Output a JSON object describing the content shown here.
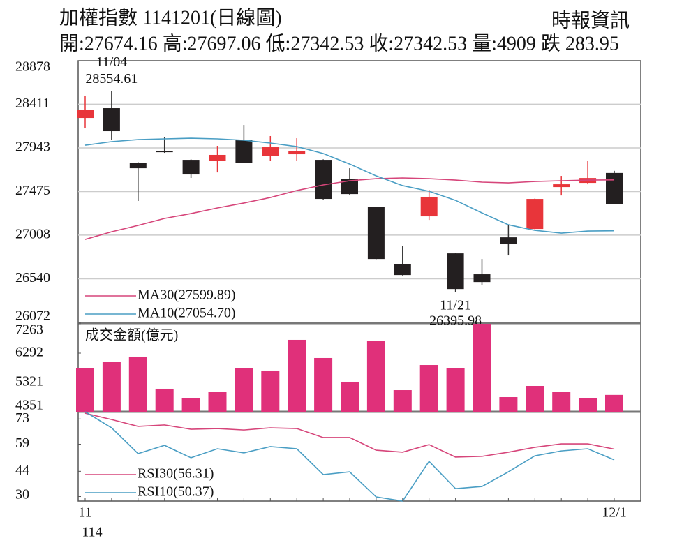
{
  "chart_data": [
    {
      "type": "candlestick",
      "title": "加權指數 1141201(日線圖)",
      "subtitle": "開:27674.16 高:27697.06 低:27342.53 收:27342.53 量:4909 跌 283.95",
      "source": "時報資訊",
      "open": [
        28264,
        28369,
        27785,
        27912,
        27815,
        27808,
        28032,
        27860,
        27875,
        27815,
        27606,
        27314,
        26700,
        27209,
        26812,
        26588,
        26984,
        27074,
        27523,
        27568,
        27674.16
      ],
      "high": [
        28504,
        28554.61,
        27790,
        28062,
        27820,
        27965,
        28189,
        28070,
        28047,
        27820,
        27725,
        27314,
        26894,
        27493,
        26812,
        26752,
        27112,
        27400,
        27643,
        27808,
        27697.06
      ],
      "low": [
        28152,
        28032,
        27374,
        27890,
        27621,
        27680,
        27780,
        27808,
        27808,
        27390,
        27440,
        26750,
        26575,
        27171,
        26395.98,
        26475,
        26790,
        27070,
        27433,
        27553,
        27342.53
      ],
      "close": [
        28347,
        28122,
        27725,
        27897,
        27658,
        27868,
        27785,
        27950,
        27912,
        27396,
        27448,
        26752,
        26580,
        27419,
        26430,
        26505,
        26910,
        27396,
        27553,
        27620,
        27342.53
      ],
      "up_color": "#e8353a",
      "down_color": "#231f20",
      "series": [
        {
          "name": "MA30(27599.89)",
          "color": "#d6457a",
          "values": [
            26962,
            27044,
            27112,
            27187,
            27239,
            27299,
            27352,
            27411,
            27486,
            27546,
            27591,
            27613,
            27621,
            27613,
            27598,
            27576,
            27568,
            27583,
            27591,
            27598,
            27599.89
          ]
        },
        {
          "name": "MA10(27054.70)",
          "color": "#4a9ec4",
          "values": [
            27972,
            28010,
            28032,
            28040,
            28047,
            28040,
            28025,
            27995,
            27957,
            27883,
            27770,
            27643,
            27539,
            27478,
            27381,
            27246,
            27119,
            27059,
            27029,
            27052,
            27054.7
          ]
        }
      ],
      "annotations": [
        {
          "label": "11/04",
          "value": 28554.61
        },
        {
          "label": "11/21",
          "value": 26395.98
        }
      ],
      "ylim": [
        26072,
        28878
      ],
      "yticks": [
        28878,
        28411,
        27943,
        27475,
        27008,
        26540,
        26072
      ],
      "grid": true,
      "legend": "lower left"
    },
    {
      "type": "bar",
      "title": "成交金額(億元)",
      "values": [
        5784,
        6015,
        6177,
        5114,
        4813,
        4998,
        5807,
        5715,
        6732,
        6131,
        5345,
        6686,
        5067,
        5899,
        5784,
        7263,
        4836,
        5206,
        5021,
        4813,
        4909
      ],
      "color": "#e0307a",
      "ylim": [
        4351,
        7263
      ],
      "yticks": [
        7263,
        6292,
        5321,
        4351
      ],
      "grid": false
    },
    {
      "type": "line",
      "categories": [
        "11",
        null,
        null,
        null,
        null,
        null,
        null,
        null,
        null,
        null,
        null,
        null,
        null,
        null,
        null,
        null,
        null,
        null,
        null,
        null,
        "12/1"
      ],
      "x_sublabel": "114",
      "series": [
        {
          "name": "RSI30(56.31)",
          "color": "#d6457a",
          "values": [
            76.2,
            72.7,
            68.9,
            69.7,
            67.3,
            67.7,
            66.9,
            68.1,
            67.7,
            62.7,
            62.7,
            55.7,
            54.6,
            58.8,
            51.9,
            52.3,
            54.6,
            57.3,
            59.2,
            59.2,
            56.31
          ]
        },
        {
          "name": "RSI10(50.37)",
          "color": "#4a9ec4",
          "values": [
            77.0,
            68.1,
            53.8,
            58.4,
            51.5,
            56.5,
            54.2,
            57.7,
            56.5,
            42.2,
            43.7,
            29.8,
            27.5,
            49.5,
            34.4,
            35.6,
            43.7,
            52.6,
            55.3,
            56.5,
            50.37
          ]
        }
      ],
      "ylim": [
        27.5,
        77
      ],
      "yticks": [
        73,
        59,
        44,
        30
      ],
      "grid": false,
      "legend": "lower left"
    }
  ]
}
